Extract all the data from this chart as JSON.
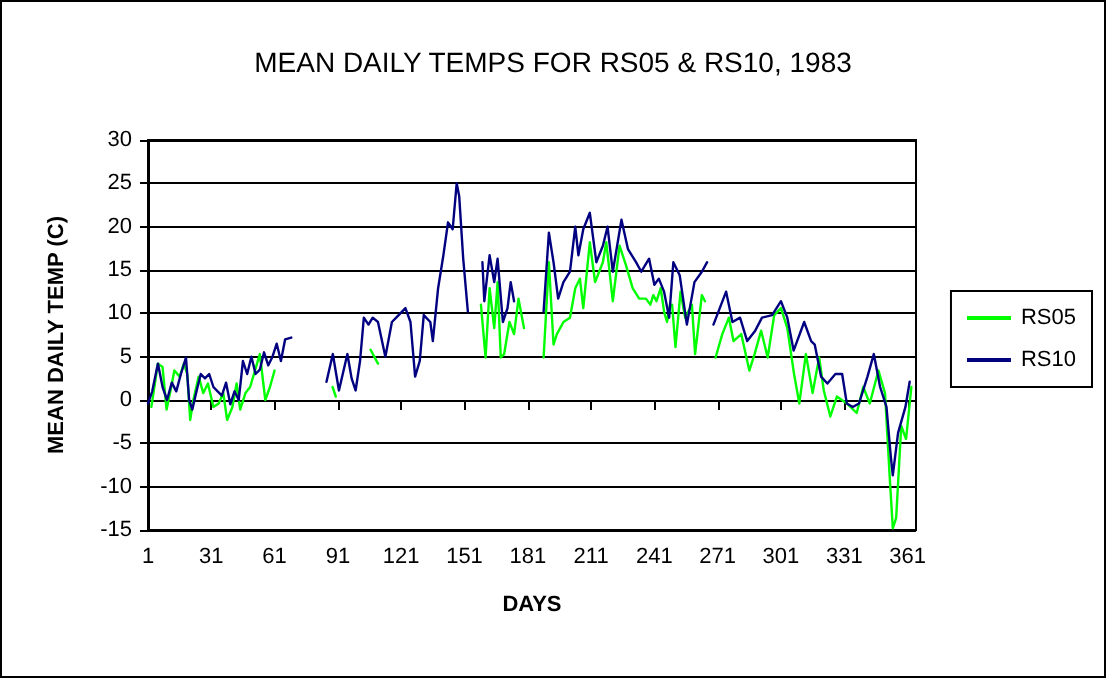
{
  "chart_data": {
    "type": "line",
    "title": "MEAN DAILY TEMPS FOR RS05 & RS10, 1983",
    "xlabel": "DAYS",
    "ylabel": "MEAN DAILY TEMP (C)",
    "xlim": [
      1,
      365
    ],
    "xticks": [
      1,
      31,
      61,
      91,
      121,
      151,
      181,
      211,
      241,
      271,
      301,
      331,
      361
    ],
    "ylim": [
      -15,
      30
    ],
    "yticks": [
      -15,
      -10,
      -5,
      0,
      5,
      10,
      15,
      20,
      25,
      30
    ],
    "grid": "y",
    "legend": "right",
    "marker": "none",
    "line_style": "solid",
    "series": [
      {
        "name": "RS05",
        "color": "#00ff00",
        "x": [
          2.6,
          5.7,
          7.9,
          9.8,
          12,
          13.5,
          16,
          18,
          19.6,
          21,
          22.5,
          25,
          27.2,
          29.4,
          32,
          34.5,
          36.7,
          38.5,
          41,
          43,
          44.7,
          47.2,
          49.4,
          54,
          56.6,
          58.8,
          61,
          75,
          88.5,
          90,
          100,
          106.5,
          110,
          135,
          158.8,
          161,
          162.9,
          165.1,
          166.7,
          168.2,
          169.8,
          172.3,
          174.5,
          176.6,
          179.2,
          184,
          188.5,
          191,
          193.2,
          194.8,
          197.9,
          201,
          203.5,
          205.7,
          207.3,
          210.4,
          212.9,
          216.6,
          218.2,
          221.3,
          224.5,
          227.6,
          230.7,
          233.8,
          237,
          239.1,
          240.5,
          242,
          244,
          245.6,
          247,
          248.4,
          249.4,
          251,
          253.4,
          255.6,
          258.8,
          260.3,
          263.5,
          265,
          267,
          270,
          273.2,
          276.3,
          278.5,
          282.2,
          286,
          288.5,
          291.6,
          294.7,
          297.8,
          301,
          304,
          307.2,
          309.7,
          312.8,
          316,
          319.1,
          321.3,
          324.4,
          327.5,
          332.2,
          336.9,
          340,
          343.1,
          347.2,
          350.3,
          352.5,
          354,
          355.6,
          358,
          360.3,
          362.8
        ],
        "values": [
          -0.8,
          4.2,
          3.8,
          -1.1,
          1.5,
          3.4,
          2.7,
          4.2,
          3,
          -2.3,
          0,
          2.7,
          0.8,
          1.9,
          -0.8,
          -0.4,
          0.8,
          -2.3,
          -0.8,
          1.9,
          -1.1,
          0.8,
          1.5,
          5.3,
          0,
          1.5,
          3.4,
          null,
          1.5,
          0.4,
          null,
          5.8,
          4.2,
          null,
          11,
          4.9,
          12.9,
          8.3,
          13.6,
          4.9,
          5.3,
          9,
          7.6,
          11.7,
          8.3,
          null,
          4.9,
          15.9,
          6.4,
          7.6,
          9,
          9.5,
          12.9,
          14,
          10.6,
          18.2,
          13.6,
          15.9,
          18.2,
          11.4,
          17.8,
          15.5,
          12.9,
          11.7,
          11.7,
          11,
          12.1,
          11.4,
          12.9,
          10.2,
          9,
          11,
          11,
          6.1,
          12.5,
          9.5,
          11,
          5.3,
          12.1,
          11.4,
          null,
          4.9,
          7.6,
          9.5,
          6.8,
          7.6,
          3.4,
          5.3,
          8,
          4.9,
          9.8,
          10.6,
          8.3,
          3,
          -0.4,
          5.3,
          0.8,
          4.9,
          1.1,
          -1.9,
          0.4,
          -0.4,
          -1.5,
          1.5,
          -0.4,
          3.4,
          0.8,
          -8.7,
          -14.8,
          -13.6,
          -3,
          -4.5,
          1.5
        ]
      },
      {
        "name": "RS10",
        "color": "#000080",
        "x": [
          1,
          3,
          5.7,
          7.9,
          10,
          12.3,
          14.4,
          16.6,
          19,
          20.5,
          22,
          24,
          26,
          28,
          30,
          32,
          34,
          36,
          38,
          40,
          42,
          44,
          46,
          48,
          50,
          52,
          54,
          56,
          58,
          60,
          62,
          64,
          66,
          68.9,
          77,
          85.6,
          88.6,
          91.5,
          95.5,
          97.5,
          99.4,
          101.5,
          103.3,
          105.5,
          107.5,
          110,
          113.5,
          116.6,
          119.8,
          123,
          125.4,
          127.6,
          129.8,
          131.7,
          134.8,
          136,
          138.5,
          141,
          143.2,
          145.4,
          147.3,
          148.5,
          150.4,
          152.6,
          156,
          159.5,
          160.4,
          162.9,
          165.1,
          166.7,
          169.2,
          171.4,
          172.9,
          174.5,
          181,
          188.5,
          191,
          193.2,
          195.4,
          197.9,
          201,
          203.5,
          205,
          207.3,
          210.4,
          213.5,
          216.6,
          218.8,
          221.3,
          225.4,
          228.5,
          232.3,
          234.8,
          238.5,
          241,
          243.1,
          245.6,
          248,
          250,
          253,
          256.4,
          260,
          263.5,
          266,
          267.5,
          269,
          272,
          275,
          278,
          281.6,
          285,
          288.8,
          292,
          296.8,
          301,
          304,
          307,
          312,
          315.3,
          317,
          320,
          323,
          326.8,
          330,
          332.2,
          335,
          338,
          342,
          345,
          348,
          351,
          353,
          354,
          356.5,
          360,
          362
        ],
        "values": [
          -0.4,
          1,
          4.2,
          1.5,
          0,
          2,
          1,
          3,
          4.9,
          0,
          -1.1,
          1,
          3,
          2.5,
          3,
          1.5,
          1,
          0.5,
          2,
          -0.5,
          1,
          0,
          4.5,
          3,
          5,
          3,
          3.5,
          5.5,
          4,
          5,
          6.5,
          4.5,
          7,
          7.2,
          null,
          2.1,
          5.3,
          1.1,
          5.3,
          2.5,
          1.1,
          4.5,
          9.5,
          8.7,
          9.5,
          9,
          5,
          9,
          9.8,
          10.6,
          9,
          2.7,
          4.5,
          9.8,
          9,
          6.8,
          12.9,
          16.7,
          20.5,
          19.7,
          25,
          23.5,
          16.3,
          10.2,
          null,
          15.9,
          11.4,
          16.7,
          13.6,
          16.3,
          9,
          10.6,
          13.6,
          11.4,
          null,
          10.2,
          19.3,
          15.9,
          11.7,
          13.6,
          14.8,
          20,
          16.7,
          19.7,
          21.6,
          15.9,
          17.8,
          20,
          14.8,
          20.8,
          17.4,
          15.9,
          14.8,
          16.3,
          13.3,
          14,
          12.5,
          9.5,
          15.9,
          14.4,
          8.7,
          13.6,
          14.8,
          15.9,
          null,
          8.7,
          10.6,
          12.5,
          9,
          9.5,
          6.8,
          8,
          9.5,
          9.8,
          11.4,
          9.5,
          5.7,
          9,
          6.8,
          6.4,
          2.7,
          1.9,
          3,
          3,
          -0.4,
          -0.8,
          -0.4,
          2.7,
          5.3,
          1.5,
          -0.8,
          -6.4,
          -8.7,
          -3.8,
          -0.8,
          2.1
        ]
      }
    ]
  }
}
